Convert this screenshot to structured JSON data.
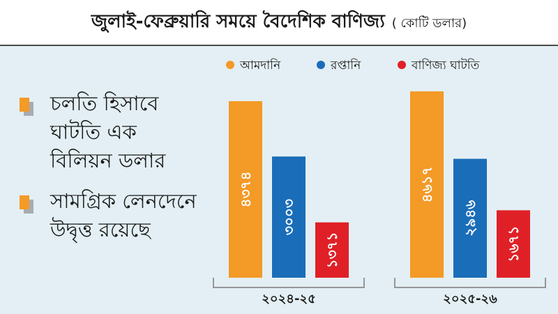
{
  "header": {
    "title": "জুলাই-ফেব্রুয়ারি সময়ে বৈদেশিক বাণিজ্য",
    "unit": "( কোটি ডলার)"
  },
  "notes": [
    {
      "text": "চলতি হিসাবে ঘাটতি এক বিলিয়ন ডলার"
    },
    {
      "text": "সামগ্রিক লেনদেনে উদ্বৃত্ত রয়েছে"
    }
  ],
  "colors": {
    "import": "#f39a27",
    "export": "#1a6db8",
    "deficit": "#e02027",
    "panel": "#e3eff4",
    "note_icon_back": "#a8acaf"
  },
  "chart_data": {
    "type": "bar",
    "categories": [
      "২০২৪-২৫",
      "২০২৫-২৬"
    ],
    "series": [
      {
        "name": "আমদানি",
        "values": [
          4374,
          4617
        ],
        "labels": [
          "৪৩৭৪",
          "৪৬১৭"
        ]
      },
      {
        "name": "রপ্তানি",
        "values": [
          3003,
          2946
        ],
        "labels": [
          "৩০০৩",
          "২৯৪৬"
        ]
      },
      {
        "name": "বাণিজ্য ঘাটতি",
        "values": [
          1371,
          1671
        ],
        "labels": [
          "১৩৭১",
          "১৬৭১"
        ]
      }
    ],
    "legend_position": "top",
    "ylim": [
      0,
      4800
    ],
    "grid": false
  }
}
